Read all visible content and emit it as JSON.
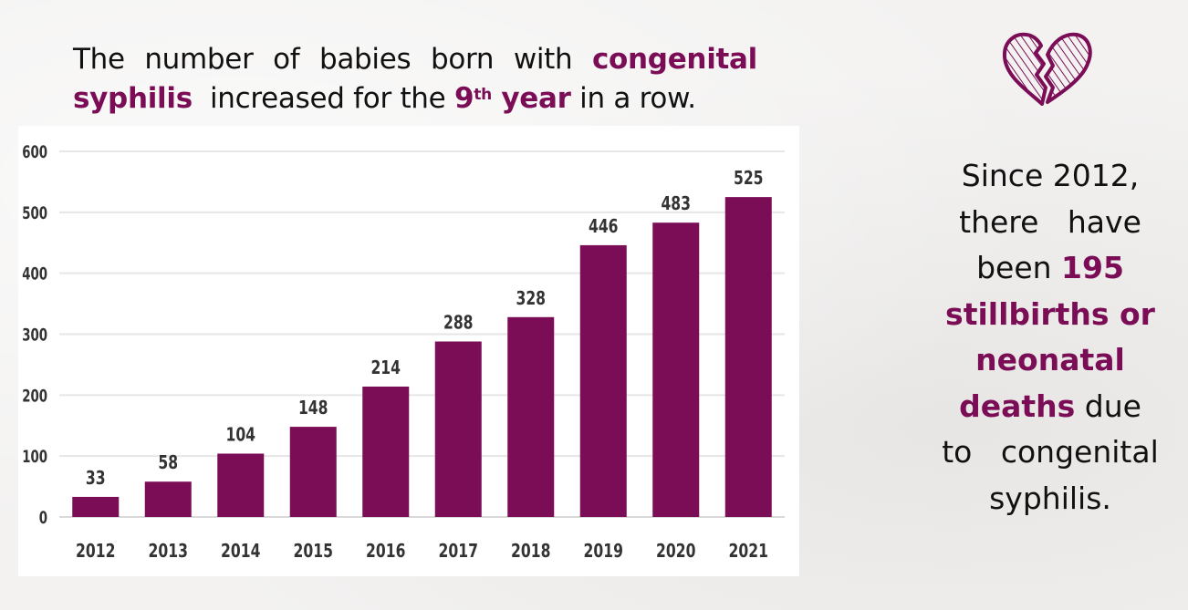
{
  "headline": {
    "part1": "The number of babies born with ",
    "hl1": "congenital syphilis",
    "part2": "  increased for the ",
    "hl2_num": "9",
    "hl2_sup": "th",
    "hl2_word": " year",
    "part3": " in a row."
  },
  "side_text": {
    "line1": "Since 2012,",
    "line2": "there   have",
    "line3_plain": "been ",
    "line3_hl": "195",
    "line4_hl": "stillbirths or",
    "line5_hl": "neonatal",
    "line6_hl": "deaths",
    "line6_plain": " due",
    "line7": "to   congenital",
    "line8": "syphilis."
  },
  "icon": {
    "name": "broken-heart-icon"
  },
  "colors": {
    "accent": "#7a0d56",
    "text": "#111111",
    "grid": "#e6e6e6",
    "tick": "#333333"
  },
  "chart_data": {
    "type": "bar",
    "title": "",
    "xlabel": "",
    "ylabel": "",
    "categories": [
      "2012",
      "2013",
      "2014",
      "2015",
      "2016",
      "2017",
      "2018",
      "2019",
      "2020",
      "2021"
    ],
    "values": [
      33,
      58,
      104,
      148,
      214,
      288,
      328,
      446,
      483,
      525
    ],
    "data_labels": [
      "33",
      "58",
      "104",
      "148",
      "214",
      "288",
      "328",
      "446",
      "483",
      "525"
    ],
    "ylim": [
      0,
      600
    ],
    "yticks": [
      0,
      100,
      200,
      300,
      400,
      500,
      600
    ],
    "ytick_labels": [
      "0",
      "100",
      "200",
      "300",
      "400",
      "500",
      "600"
    ],
    "grid": true,
    "legend": "none"
  }
}
